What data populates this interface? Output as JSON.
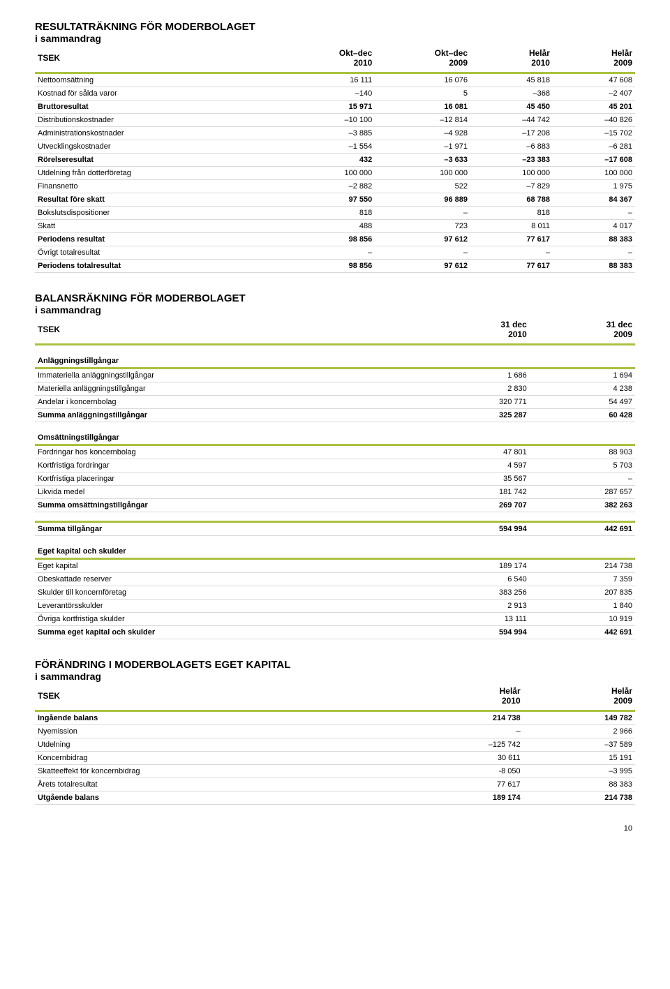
{
  "income": {
    "title": "RESULTATRÄKNING FÖR MODERBOLAGET",
    "sub": "i sammandrag",
    "headers": [
      "TSEK",
      "Okt–dec\n2010",
      "Okt–dec\n2009",
      "Helår\n2010",
      "Helår\n2009"
    ],
    "rows": [
      {
        "label": "Nettoomsättning",
        "c": [
          "16 111",
          "16 076",
          "45 818",
          "47 608"
        ]
      },
      {
        "label": "Kostnad för sålda varor",
        "c": [
          "–140",
          "5",
          "–368",
          "–2 407"
        ]
      },
      {
        "label": "Bruttoresultat",
        "c": [
          "15 971",
          "16 081",
          "45 450",
          "45 201"
        ],
        "bold": true
      },
      {
        "label": "Distributionskostnader",
        "c": [
          "–10 100",
          "–12 814",
          "–44 742",
          "–40 826"
        ]
      },
      {
        "label": "Administrationskostnader",
        "c": [
          "–3 885",
          "–4 928",
          "–17 208",
          "–15 702"
        ]
      },
      {
        "label": "Utvecklingskostnader",
        "c": [
          "–1 554",
          "–1 971",
          "–6 883",
          "–6 281"
        ]
      },
      {
        "label": "Rörelseresultat",
        "c": [
          "432",
          "–3 633",
          "–23 383",
          "–17 608"
        ],
        "bold": true
      },
      {
        "label": "Utdelning från dotterföretag",
        "c": [
          "100 000",
          "100 000",
          "100 000",
          "100 000"
        ]
      },
      {
        "label": "Finansnetto",
        "c": [
          "–2 882",
          "522",
          "–7 829",
          "1 975"
        ]
      },
      {
        "label": "Resultat före skatt",
        "c": [
          "97 550",
          "96 889",
          "68 788",
          "84 367"
        ],
        "bold": true
      },
      {
        "label": "Bokslutsdispositioner",
        "c": [
          "818",
          "–",
          "818",
          "–"
        ]
      },
      {
        "label": "Skatt",
        "c": [
          "488",
          "723",
          "8 011",
          "4 017"
        ]
      },
      {
        "label": "Periodens resultat",
        "c": [
          "98 856",
          "97 612",
          "77 617",
          "88 383"
        ],
        "bold": true
      },
      {
        "label": "Övrigt totalresultat",
        "c": [
          "–",
          "–",
          "–",
          "–"
        ]
      },
      {
        "label": "Periodens totalresultat",
        "c": [
          "98 856",
          "97 612",
          "77 617",
          "88 383"
        ],
        "bold": true
      }
    ]
  },
  "balance": {
    "title": "BALANSRÄKNING FÖR MODERBOLAGET",
    "sub": "i sammandrag",
    "headers": [
      "TSEK",
      "31 dec\n2010",
      "31 dec\n2009"
    ],
    "groups": [
      {
        "head": "Anläggningstillgångar",
        "rows": [
          {
            "label": "Immateriella anläggningstillgångar",
            "c": [
              "1 686",
              "1 694"
            ]
          },
          {
            "label": "Materiella anläggningstillgångar",
            "c": [
              "2 830",
              "4 238"
            ]
          },
          {
            "label": "Andelar i koncernbolag",
            "c": [
              "320 771",
              "54 497"
            ]
          },
          {
            "label": "Summa anläggningstillgångar",
            "c": [
              "325 287",
              "60 428"
            ],
            "bold": true
          }
        ]
      },
      {
        "head": "Omsättningstillgångar",
        "rows": [
          {
            "label": "Fordringar hos koncernbolag",
            "c": [
              "47 801",
              "88 903"
            ]
          },
          {
            "label": "Kortfristiga fordringar",
            "c": [
              "4 597",
              "5 703"
            ]
          },
          {
            "label": "Kortfristiga placeringar",
            "c": [
              "35 567",
              "–"
            ]
          },
          {
            "label": "Likvida medel",
            "c": [
              "181 742",
              "287 657"
            ]
          },
          {
            "label": "Summa omsättningstillgångar",
            "c": [
              "269 707",
              "382 263"
            ],
            "bold": true
          }
        ]
      },
      {
        "head": "",
        "rows": [
          {
            "label": "Summa tillgångar",
            "c": [
              "594 994",
              "442 691"
            ],
            "bold": true
          }
        ]
      },
      {
        "head": "Eget kapital och skulder",
        "rows": [
          {
            "label": "Eget kapital",
            "c": [
              "189 174",
              "214 738"
            ]
          },
          {
            "label": "Obeskattade reserver",
            "c": [
              "6 540",
              "7 359"
            ]
          },
          {
            "label": "Skulder till koncernföretag",
            "c": [
              "383 256",
              "207 835"
            ]
          },
          {
            "label": "Leverantörsskulder",
            "c": [
              "2 913",
              "1 840"
            ]
          },
          {
            "label": "Övriga kortfristiga skulder",
            "c": [
              "13 111",
              "10 919"
            ]
          },
          {
            "label": "Summa eget kapital och skulder",
            "c": [
              "594 994",
              "442 691"
            ],
            "bold": true
          }
        ]
      }
    ]
  },
  "equity": {
    "title": "FÖRÄNDRING I MODERBOLAGETS EGET KAPITAL",
    "sub": "i sammandrag",
    "headers": [
      "TSEK",
      "Helår\n2010",
      "Helår\n2009"
    ],
    "rows": [
      {
        "label": "Ingående balans",
        "c": [
          "214 738",
          "149 782"
        ],
        "bold": true
      },
      {
        "label": "Nyemission",
        "c": [
          "–",
          "2 966"
        ]
      },
      {
        "label": "Utdelning",
        "c": [
          "–125 742",
          "–37 589"
        ]
      },
      {
        "label": "Koncernbidrag",
        "c": [
          "30 611",
          "15 191"
        ]
      },
      {
        "label": "Skatteeffekt för koncernbidrag",
        "c": [
          "-8 050",
          "–3 995"
        ]
      },
      {
        "label": "Årets totalresultat",
        "c": [
          "77 617",
          "88 383"
        ]
      },
      {
        "label": "Utgående balans",
        "c": [
          "189 174",
          "214 738"
        ],
        "bold": true
      }
    ]
  },
  "pageNumber": "10"
}
